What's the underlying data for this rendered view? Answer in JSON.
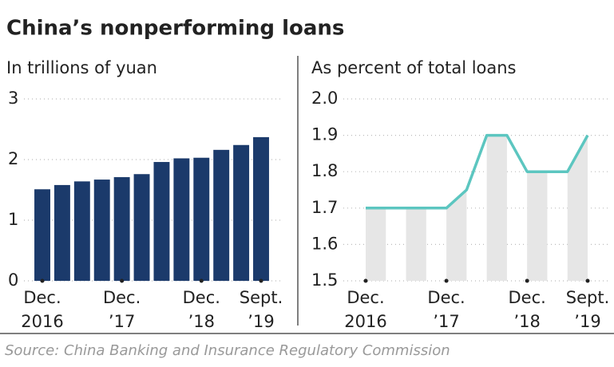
{
  "title": "China’s nonperforming loans",
  "source": "Source: China Banking and Insurance Regulatory Commission",
  "chart_data": [
    {
      "type": "bar",
      "subtitle": "In trillions of yuan",
      "categories": [
        "Dec. 2016",
        null,
        null,
        null,
        "Dec. ’17",
        null,
        null,
        null,
        "Dec. ’18",
        null,
        null,
        "Sept. ’19"
      ],
      "values": [
        1.51,
        1.58,
        1.64,
        1.67,
        1.71,
        1.76,
        1.96,
        2.02,
        2.03,
        2.16,
        2.24,
        2.37
      ],
      "color": "#1b3a6b",
      "ylim": [
        0,
        3
      ],
      "yticks": [
        0,
        1,
        2,
        3
      ],
      "grid": true
    },
    {
      "type": "line",
      "subtitle": "As percent of total loans",
      "categories": [
        "Dec. 2016",
        null,
        null,
        null,
        "Dec. ’17",
        null,
        null,
        null,
        "Dec. ’18",
        null,
        null,
        "Sept. ’19"
      ],
      "values": [
        1.7,
        1.7,
        1.7,
        1.7,
        1.7,
        1.75,
        1.9,
        1.9,
        1.8,
        1.8,
        1.8,
        1.9
      ],
      "color": "#5cc6c0",
      "shade": "#e6e6e6",
      "ylim": [
        1.5,
        2.0
      ],
      "yticks": [
        1.5,
        1.6,
        1.7,
        1.8,
        1.9,
        {
          "value": 2.0,
          "label": "2.0"
        }
      ],
      "grid": true
    }
  ]
}
